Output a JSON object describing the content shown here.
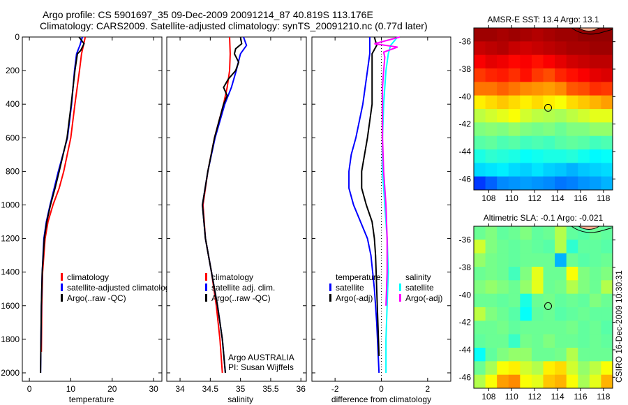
{
  "title_line1": "Argo profile: CS 5901697_35 09-Dec-2009 20091214_87 40.819S 113.176E",
  "title_line2": "Climatology: CARS2009. Satellite-adjusted climatology: synTS_20091210.nc (0.77d later)",
  "credit": "Argo AUSTRALIA",
  "pi": "PI: Susan Wijffels",
  "stamp": "CSIRO 16-Dec-2009 10:30:31",
  "colors": {
    "clim": "#ff0000",
    "sat": "#0000ff",
    "argo": "#000000",
    "sal_sat": "#00ffff",
    "sal_argo": "#ff00ff"
  },
  "chart_data": [
    {
      "type": "line",
      "id": "temp",
      "xlabel": "temperature",
      "xlim": [
        -1.7,
        32
      ],
      "ylim": [
        2050,
        0
      ],
      "xticks": [
        0,
        10,
        20,
        30
      ],
      "yticks": [
        0,
        200,
        400,
        600,
        800,
        1000,
        1200,
        1400,
        1600,
        1800,
        2000
      ],
      "legend": [
        "climatology",
        "satellite-adjusted climatology",
        "Argo(..raw -QC)"
      ],
      "series": [
        {
          "name": "climatology",
          "color": "#ff0000",
          "depth": [
            0,
            100,
            200,
            400,
            600,
            800,
            900,
            1000,
            1100,
            1200,
            1400,
            1600,
            1875
          ],
          "values": [
            13.5,
            12.6,
            12.1,
            11.0,
            10.0,
            8.3,
            7.2,
            5.7,
            4.5,
            3.8,
            3.2,
            3.0,
            2.9
          ]
        },
        {
          "name": "satellite-adjusted climatology",
          "color": "#0000ff",
          "depth": [
            0,
            50,
            100,
            200,
            400,
            600,
            800,
            900,
            1000,
            1100,
            1200,
            1400,
            1600,
            2000
          ],
          "values": [
            12.8,
            12.2,
            11.4,
            10.9,
            10.2,
            9.2,
            7.0,
            6.0,
            5.0,
            4.1,
            3.5,
            3.1,
            2.9,
            2.7
          ]
        },
        {
          "name": "Argo(..raw -QC)",
          "color": "#000000",
          "depth": [
            0,
            40,
            80,
            100,
            150,
            200,
            400,
            600,
            800,
            900,
            1000,
            1100,
            1200,
            1400,
            1600,
            2000
          ],
          "values": [
            12.0,
            13.2,
            12.4,
            11.6,
            11.3,
            11.0,
            10.1,
            9.1,
            7.2,
            6.2,
            5.1,
            4.2,
            3.6,
            3.1,
            2.9,
            2.7
          ]
        }
      ]
    },
    {
      "type": "line",
      "id": "sal",
      "xlabel": "salinity",
      "xlim": [
        33.78,
        36.09
      ],
      "ylim": [
        2050,
        0
      ],
      "xticks": [
        34,
        34.5,
        35,
        35.5,
        36
      ],
      "legend": [
        "climatology",
        "satellite adj. clim.",
        "Argo(..raw -QC)"
      ],
      "series": [
        {
          "name": "climatology",
          "color": "#ff0000",
          "depth": [
            0,
            100,
            200,
            300,
            400,
            600,
            800,
            1000,
            1200,
            1400,
            1600,
            1800,
            2000
          ],
          "values": [
            34.82,
            34.83,
            34.82,
            34.78,
            34.72,
            34.57,
            34.46,
            34.38,
            34.42,
            34.52,
            34.6,
            34.66,
            34.7
          ]
        },
        {
          "name": "satellite adj. clim.",
          "color": "#0000ff",
          "depth": [
            0,
            50,
            100,
            200,
            300,
            400,
            600,
            800,
            1000,
            1200,
            1400,
            1600,
            1800,
            2000
          ],
          "values": [
            35.05,
            35.1,
            35.0,
            34.93,
            34.85,
            34.74,
            34.58,
            34.46,
            34.37,
            34.42,
            34.52,
            34.62,
            34.7,
            34.75
          ]
        },
        {
          "name": "Argo(..raw -QC)",
          "color": "#000000",
          "depth": [
            0,
            40,
            70,
            100,
            150,
            200,
            250,
            300,
            350,
            400,
            600,
            800,
            1000,
            1200,
            1400,
            1600,
            1800,
            2000
          ],
          "values": [
            35.0,
            35.02,
            34.92,
            34.9,
            34.97,
            34.92,
            34.8,
            34.72,
            34.78,
            34.72,
            34.57,
            34.46,
            34.37,
            34.42,
            34.52,
            34.62,
            34.7,
            34.75
          ]
        }
      ]
    },
    {
      "type": "line",
      "id": "diff",
      "xlabel": "difference from climatology",
      "xlim": [
        -3,
        3
      ],
      "ylim": [
        2050,
        0
      ],
      "xticks": [
        -2,
        0,
        2
      ],
      "legend_temp": [
        "temperature",
        "satellite",
        "Argo(-adj)"
      ],
      "legend_sal": [
        "salinity",
        "satellite",
        "Argo(-adj)"
      ],
      "series": [
        {
          "name": "temperature satellite",
          "color": "#0000ff",
          "depth": [
            0,
            100,
            200,
            400,
            600,
            700,
            800,
            900,
            1000,
            1100,
            1200,
            1300,
            1500,
            1700,
            2000
          ],
          "values": [
            -0.5,
            -0.5,
            -0.6,
            -0.8,
            -1.1,
            -1.3,
            -1.4,
            -1.4,
            -1.2,
            -0.9,
            -0.6,
            -0.45,
            -0.3,
            -0.2,
            -0.1
          ]
        },
        {
          "name": "temperature Argo(-adj)",
          "color": "#000000",
          "depth": [
            0,
            50,
            100,
            200,
            400,
            600,
            800,
            900,
            1000,
            1100,
            1200,
            1300,
            1500,
            1700,
            1900
          ],
          "values": [
            -0.3,
            -0.2,
            -0.4,
            -0.4,
            -0.4,
            -0.6,
            -0.85,
            -0.85,
            -0.65,
            -0.4,
            -0.3,
            -0.25,
            -0.2,
            -0.15,
            -0.1
          ]
        },
        {
          "name": "salinity satellite",
          "color": "#00ffff",
          "depth": [
            0,
            50,
            100,
            200,
            400,
            600,
            800,
            1000,
            1200,
            1400,
            1600,
            1800,
            2000
          ],
          "values": [
            0.7,
            0.4,
            0.3,
            0.2,
            0.1,
            0.05,
            0.05,
            0.15,
            0.25,
            0.3,
            0.25,
            0.2,
            0.2
          ]
        },
        {
          "name": "salinity Argo(-adj)",
          "color": "#ff00ff",
          "depth": [
            0,
            40,
            60,
            90,
            120,
            200,
            300,
            400,
            600,
            800,
            1000,
            1200,
            1400,
            1600
          ],
          "values": [
            0.8,
            -0.3,
            0.7,
            0.1,
            0.15,
            0.1,
            0.05,
            0.05,
            0.05,
            0.1,
            0.2,
            0.25,
            0.25,
            0.2
          ]
        }
      ]
    },
    {
      "type": "heatmap",
      "id": "sst",
      "title": "AMSR-E SST: 13.4 Argo: 13.1",
      "xlim": [
        106.7,
        118.8
      ],
      "ylim": [
        -35,
        -46.8
      ],
      "xticks": [
        108,
        110,
        112,
        114,
        116,
        118
      ],
      "yticks": [
        -36,
        -38,
        -40,
        -42,
        -44,
        -46
      ],
      "marker": [
        113.176,
        -40.819
      ],
      "grid": [
        [
          0.97,
          0.97,
          0.96,
          0.97,
          0.96,
          0.95,
          0.96,
          0.97,
          0.97,
          0.98,
          0.98,
          0.98
        ],
        [
          0.93,
          0.94,
          0.95,
          0.93,
          0.92,
          0.93,
          0.94,
          0.95,
          0.96,
          0.96,
          0.97,
          0.97
        ],
        [
          0.88,
          0.9,
          0.89,
          0.87,
          0.88,
          0.86,
          0.88,
          0.9,
          0.92,
          0.93,
          0.94,
          0.94
        ],
        [
          0.82,
          0.84,
          0.85,
          0.83,
          0.86,
          0.82,
          0.8,
          0.84,
          0.86,
          0.88,
          0.9,
          0.91
        ],
        [
          0.76,
          0.76,
          0.78,
          0.76,
          0.74,
          0.73,
          0.72,
          0.74,
          0.79,
          0.8,
          0.83,
          0.82
        ],
        [
          0.64,
          0.66,
          0.68,
          0.66,
          0.64,
          0.66,
          0.64,
          0.62,
          0.66,
          0.68,
          0.7,
          0.72
        ],
        [
          0.56,
          0.58,
          0.6,
          0.62,
          0.58,
          0.56,
          0.55,
          0.54,
          0.56,
          0.58,
          0.6,
          0.6
        ],
        [
          0.5,
          0.51,
          0.5,
          0.52,
          0.5,
          0.49,
          0.5,
          0.48,
          0.5,
          0.5,
          0.52,
          0.52
        ],
        [
          0.46,
          0.47,
          0.45,
          0.46,
          0.44,
          0.45,
          0.44,
          0.46,
          0.47,
          0.46,
          0.44,
          0.45
        ],
        [
          0.4,
          0.42,
          0.41,
          0.4,
          0.38,
          0.39,
          0.4,
          0.4,
          0.41,
          0.39,
          0.37,
          0.38
        ],
        [
          0.34,
          0.35,
          0.36,
          0.34,
          0.33,
          0.35,
          0.33,
          0.32,
          0.3,
          0.32,
          0.33,
          0.34
        ],
        [
          0.18,
          0.22,
          0.26,
          0.27,
          0.28,
          0.27,
          0.26,
          0.24,
          0.25,
          0.27,
          0.28,
          0.3
        ]
      ]
    },
    {
      "type": "heatmap",
      "id": "sla",
      "title": "Altimetric SLA: -0.1 Argo: -0.021",
      "xlim": [
        106.7,
        118.8
      ],
      "ylim": [
        -35,
        -46.8
      ],
      "xticks": [
        108,
        110,
        112,
        114,
        116,
        118
      ],
      "yticks": [
        -36,
        -38,
        -40,
        -42,
        -44,
        -46
      ],
      "marker": [
        113.176,
        -40.819
      ],
      "grid": [
        [
          0.48,
          0.5,
          0.47,
          0.48,
          0.5,
          0.47,
          0.48,
          0.55,
          0.47,
          0.46,
          0.48,
          0.47
        ],
        [
          0.58,
          0.5,
          0.48,
          0.47,
          0.48,
          0.47,
          0.46,
          0.55,
          0.42,
          0.47,
          0.47,
          0.46
        ],
        [
          0.52,
          0.49,
          0.48,
          0.47,
          0.48,
          0.48,
          0.48,
          0.3,
          0.48,
          0.46,
          0.47,
          0.48
        ],
        [
          0.48,
          0.49,
          0.48,
          0.44,
          0.5,
          0.6,
          0.48,
          0.48,
          0.62,
          0.5,
          0.48,
          0.5
        ],
        [
          0.5,
          0.52,
          0.5,
          0.48,
          0.52,
          0.6,
          0.48,
          0.49,
          0.55,
          0.5,
          0.48,
          0.55
        ],
        [
          0.48,
          0.48,
          0.47,
          0.48,
          0.4,
          0.48,
          0.49,
          0.47,
          0.48,
          0.47,
          0.5,
          0.48
        ],
        [
          0.56,
          0.5,
          0.48,
          0.46,
          0.38,
          0.47,
          0.48,
          0.46,
          0.47,
          0.48,
          0.47,
          0.47
        ],
        [
          0.48,
          0.48,
          0.49,
          0.47,
          0.48,
          0.48,
          0.48,
          0.48,
          0.49,
          0.47,
          0.48,
          0.46
        ],
        [
          0.47,
          0.48,
          0.48,
          0.43,
          0.49,
          0.48,
          0.5,
          0.48,
          0.48,
          0.47,
          0.48,
          0.47
        ],
        [
          0.38,
          0.47,
          0.5,
          0.52,
          0.52,
          0.48,
          0.48,
          0.49,
          0.55,
          0.48,
          0.48,
          0.48
        ],
        [
          0.48,
          0.54,
          0.62,
          0.64,
          0.58,
          0.55,
          0.64,
          0.66,
          0.58,
          0.52,
          0.56,
          0.62
        ],
        [
          0.55,
          0.62,
          0.72,
          0.74,
          0.62,
          0.6,
          0.68,
          0.7,
          0.62,
          0.54,
          0.6,
          0.7
        ]
      ]
    }
  ]
}
